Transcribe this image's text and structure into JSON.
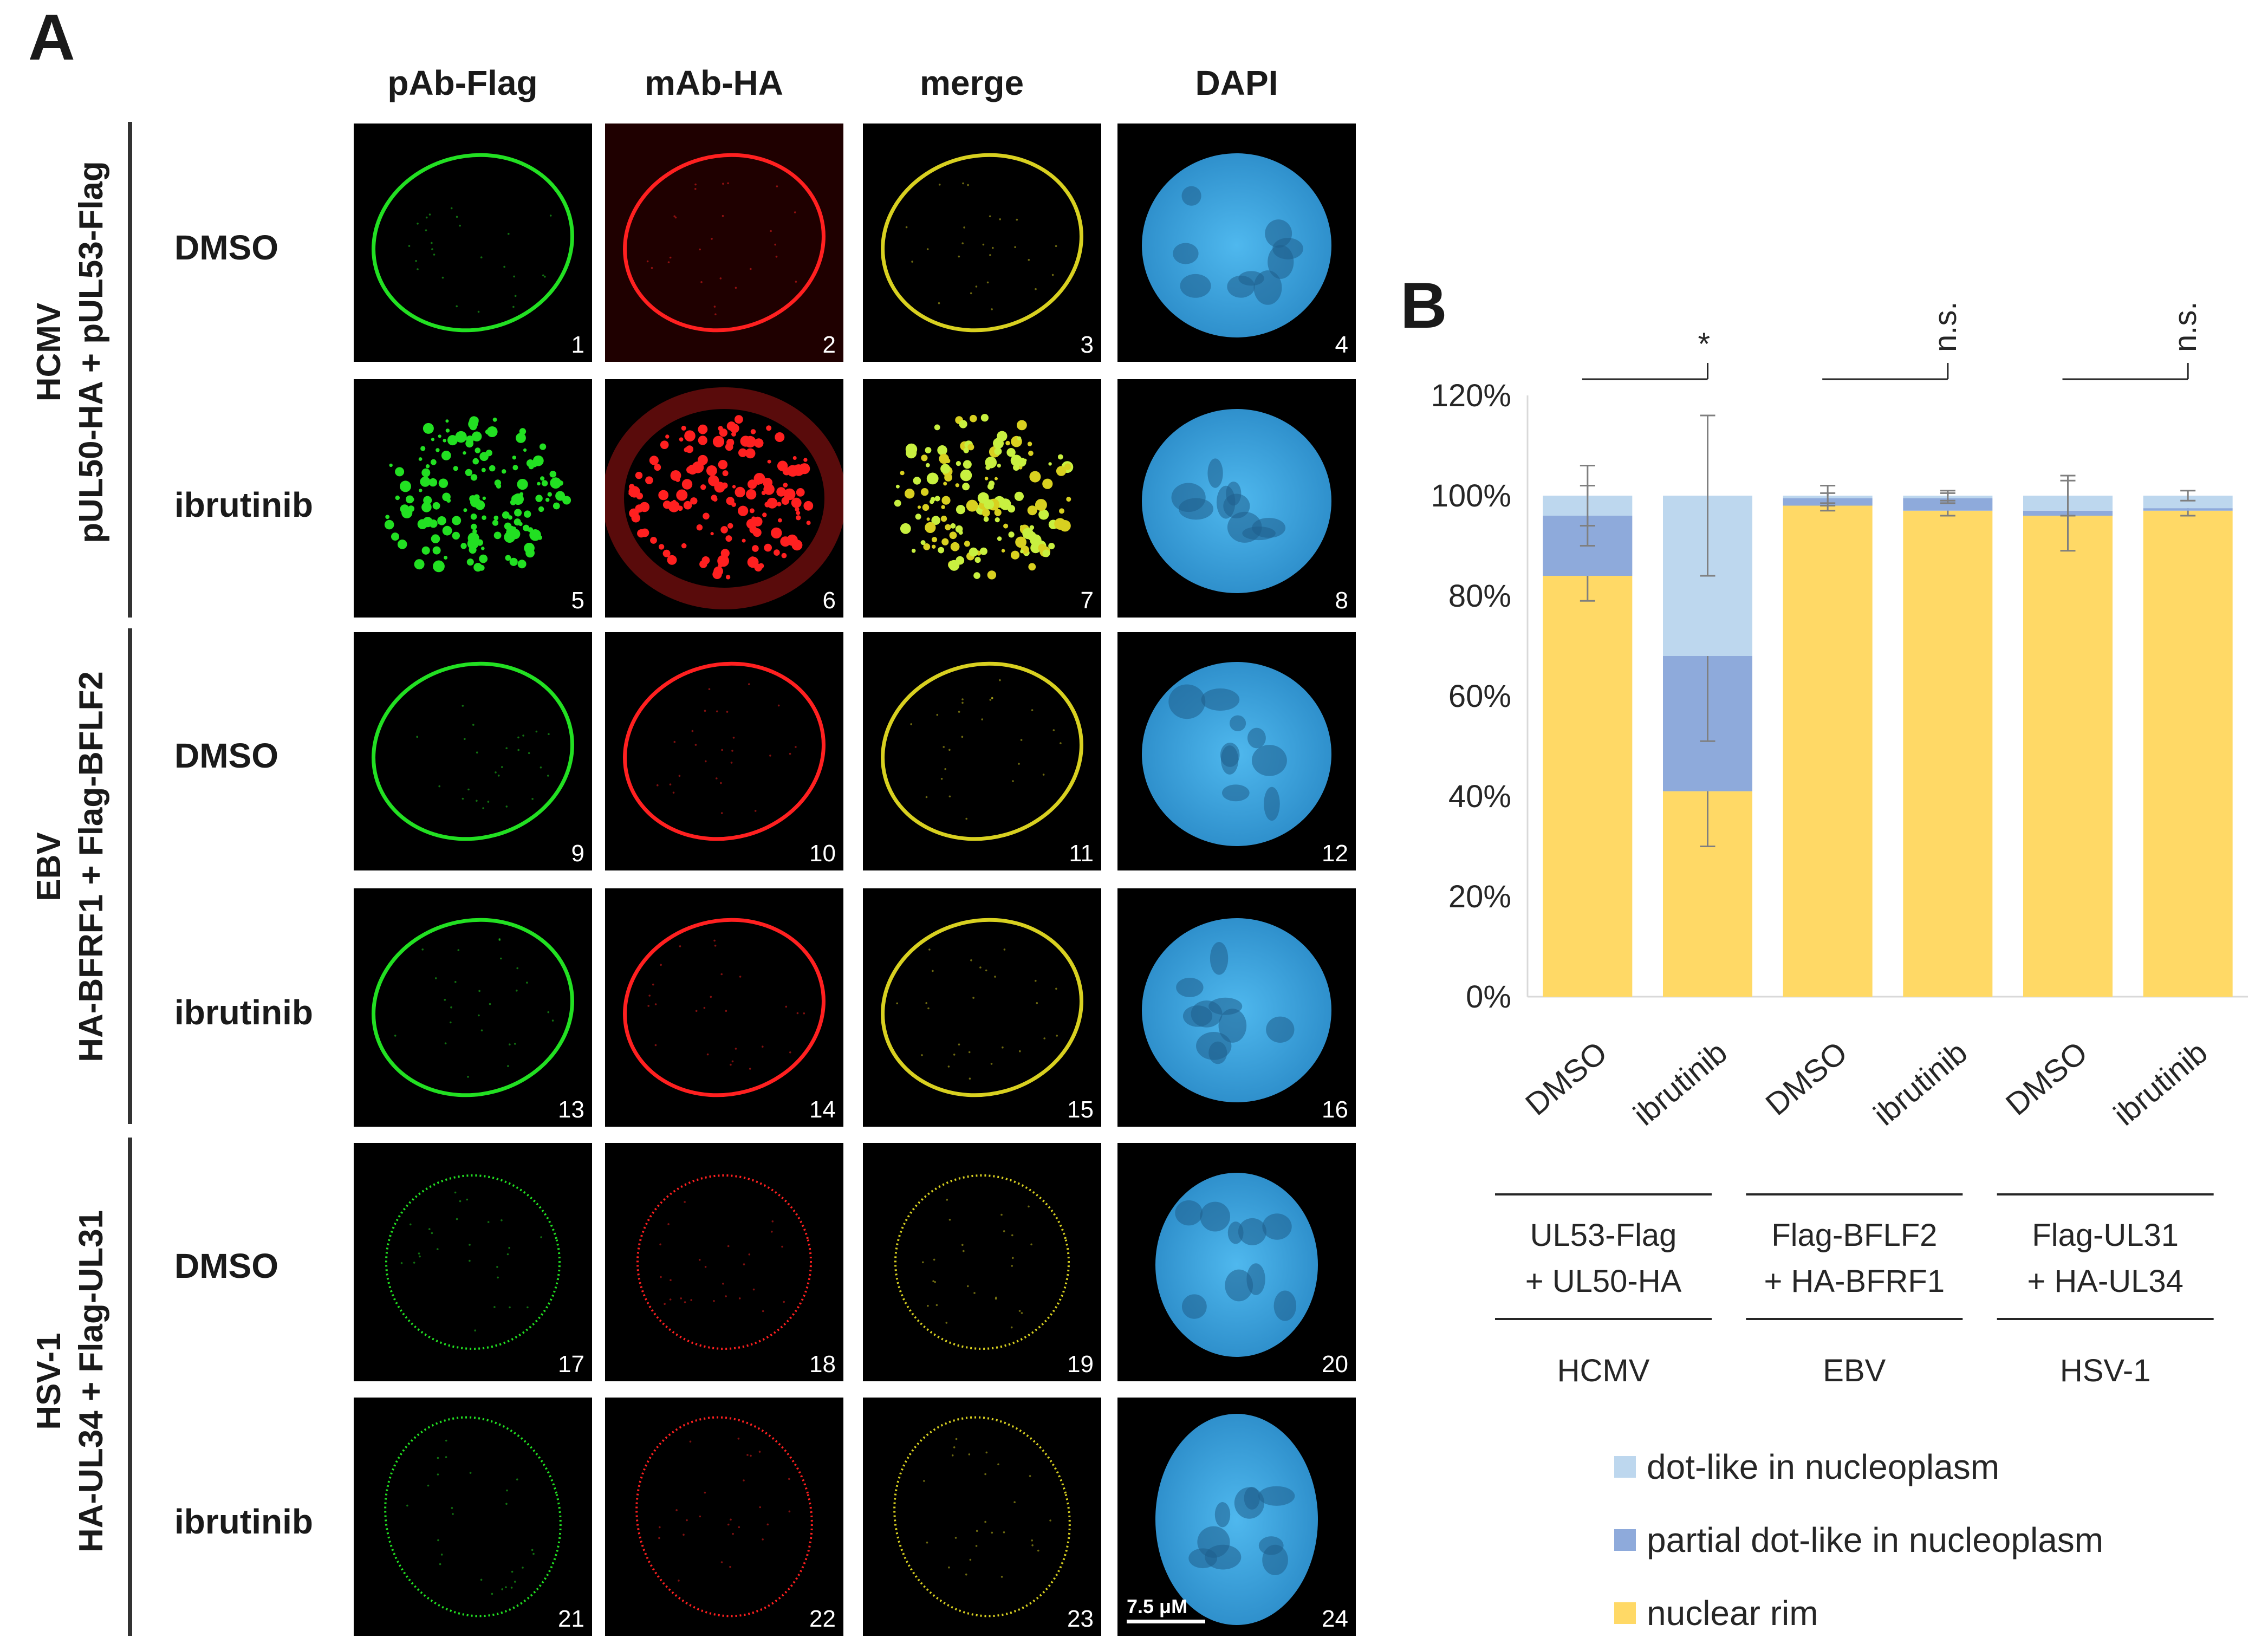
{
  "figure": {
    "panel_a_letter": "A",
    "panel_b_letter": "B",
    "columns": [
      "pAb-Flag",
      "mAb-HA",
      "merge",
      "DAPI"
    ],
    "groups": [
      {
        "virus": "HCMV",
        "constructs": "pUL50-HA + pUL53-Flag",
        "rows": [
          {
            "treatment": "DMSO",
            "numbers": [
              "1",
              "2",
              "3",
              "4"
            ]
          },
          {
            "treatment": "ibrutinib",
            "numbers": [
              "5",
              "6",
              "7",
              "8"
            ]
          }
        ]
      },
      {
        "virus": "EBV",
        "constructs": "HA-BFRF1 + Flag-BFLF2",
        "rows": [
          {
            "treatment": "DMSO",
            "numbers": [
              "9",
              "10",
              "11",
              "12"
            ]
          },
          {
            "treatment": "ibrutinib",
            "numbers": [
              "13",
              "14",
              "15",
              "16"
            ]
          }
        ]
      },
      {
        "virus": "HSV-1",
        "constructs": "HA-UL34 + Flag-UL31",
        "rows": [
          {
            "treatment": "DMSO",
            "numbers": [
              "17",
              "18",
              "19",
              "20"
            ]
          },
          {
            "treatment": "ibrutinib",
            "numbers": [
              "21",
              "22",
              "23",
              "24"
            ]
          }
        ]
      }
    ],
    "scale_bar_label": "7.5 μM",
    "colors": {
      "flag": "#22e022",
      "ha": "#ff2020",
      "merge": "#d8d020",
      "dapi": "#3aa8e0"
    }
  },
  "chart_data": {
    "type": "bar",
    "stacked": true,
    "categories": [
      "DMSO",
      "ibrutinib",
      "DMSO",
      "ibrutinib",
      "DMSO",
      "ibrutinib"
    ],
    "group_labels": [
      {
        "construct_line1": "UL53-Flag",
        "construct_line2": "+ UL50-HA",
        "virus": "HCMV"
      },
      {
        "construct_line1": "Flag-BFLF2",
        "construct_line2": "+ HA-BFRF1",
        "virus": "EBV"
      },
      {
        "construct_line1": "Flag-UL31",
        "construct_line2": "+ HA-UL34",
        "virus": "HSV-1"
      }
    ],
    "series": [
      {
        "name": "nuclear rim",
        "color": "#ffd966",
        "values": [
          84,
          41,
          98,
          97,
          96,
          97
        ],
        "error": [
          5,
          11,
          1,
          1,
          7,
          1
        ]
      },
      {
        "name": "partial dot-like in nucleoplasm",
        "color": "#8eaadb",
        "values": [
          12,
          27,
          1.5,
          2.5,
          1,
          0.5
        ],
        "error": [
          6,
          17,
          1,
          1,
          0,
          0
        ]
      },
      {
        "name": "dot-like in nucleoplasm",
        "color": "#bdd7ee",
        "values": [
          4,
          32,
          0.5,
          0.5,
          3,
          2.5
        ],
        "error": [
          6,
          16,
          2,
          1,
          4,
          1
        ]
      }
    ],
    "ylim": [
      0,
      120
    ],
    "yticks": [
      "0%",
      "20%",
      "40%",
      "60%",
      "80%",
      "100%",
      "120%"
    ],
    "significance": [
      "*",
      "n.s.",
      "n.s."
    ],
    "grid": false,
    "legend_position": "bottom"
  }
}
